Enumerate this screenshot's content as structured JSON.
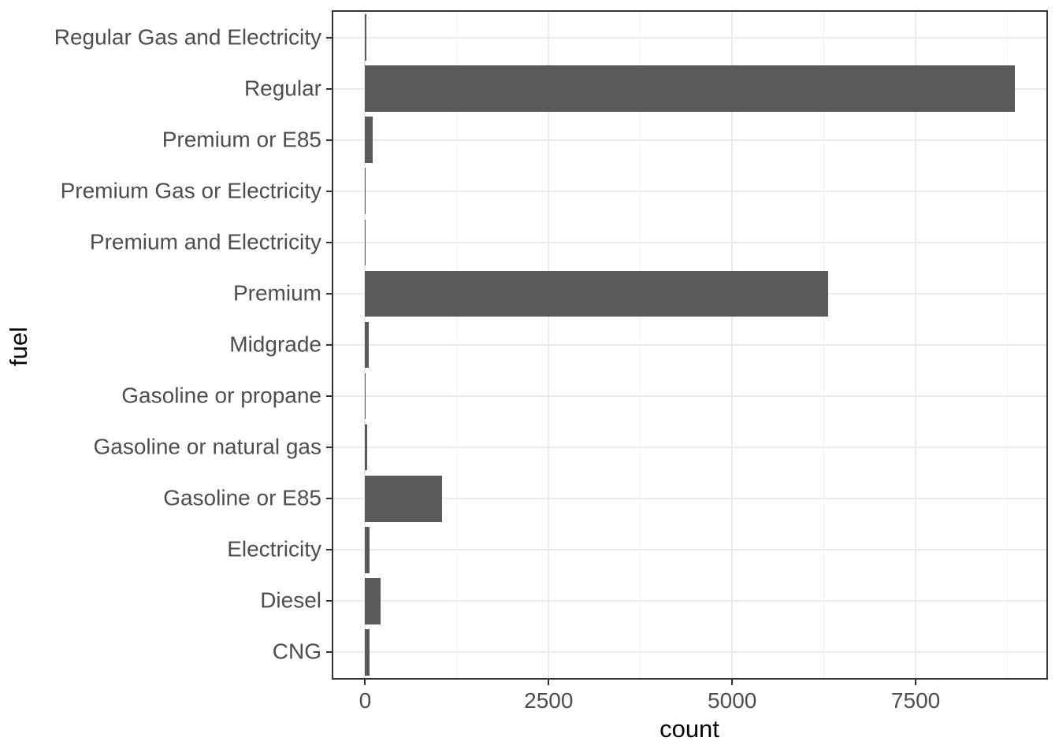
{
  "chart_data": {
    "type": "bar",
    "orientation": "horizontal",
    "title": "",
    "xlabel": "count",
    "ylabel": "fuel",
    "categories": [
      "Regular Gas and Electricity",
      "Regular",
      "Premium or E85",
      "Premium Gas or Electricity",
      "Premium and Electricity",
      "Premium",
      "Midgrade",
      "Gasoline or propane",
      "Gasoline or natural gas",
      "Gasoline or E85",
      "Electricity",
      "Diesel",
      "CNG"
    ],
    "values": [
      18,
      8850,
      100,
      10,
      2,
      6310,
      50,
      8,
      28,
      1050,
      62,
      205,
      57
    ],
    "x_ticks": [
      0,
      2500,
      5000,
      7500
    ],
    "x_minor_ticks": [
      1250,
      3750,
      6250,
      8750
    ],
    "xlim": [
      -434,
      9281
    ],
    "bar_width_fraction": 0.9,
    "grid": true,
    "legend": false,
    "colors": {
      "bar_fill": "#595959",
      "panel_border": "#333333",
      "grid_major": "#EBEBEB",
      "grid_minor": "#F0F0F0",
      "axis_text": "#4D4D4D",
      "axis_title": "#000000",
      "tick_mark": "#333333",
      "background": "#FFFFFF"
    }
  }
}
